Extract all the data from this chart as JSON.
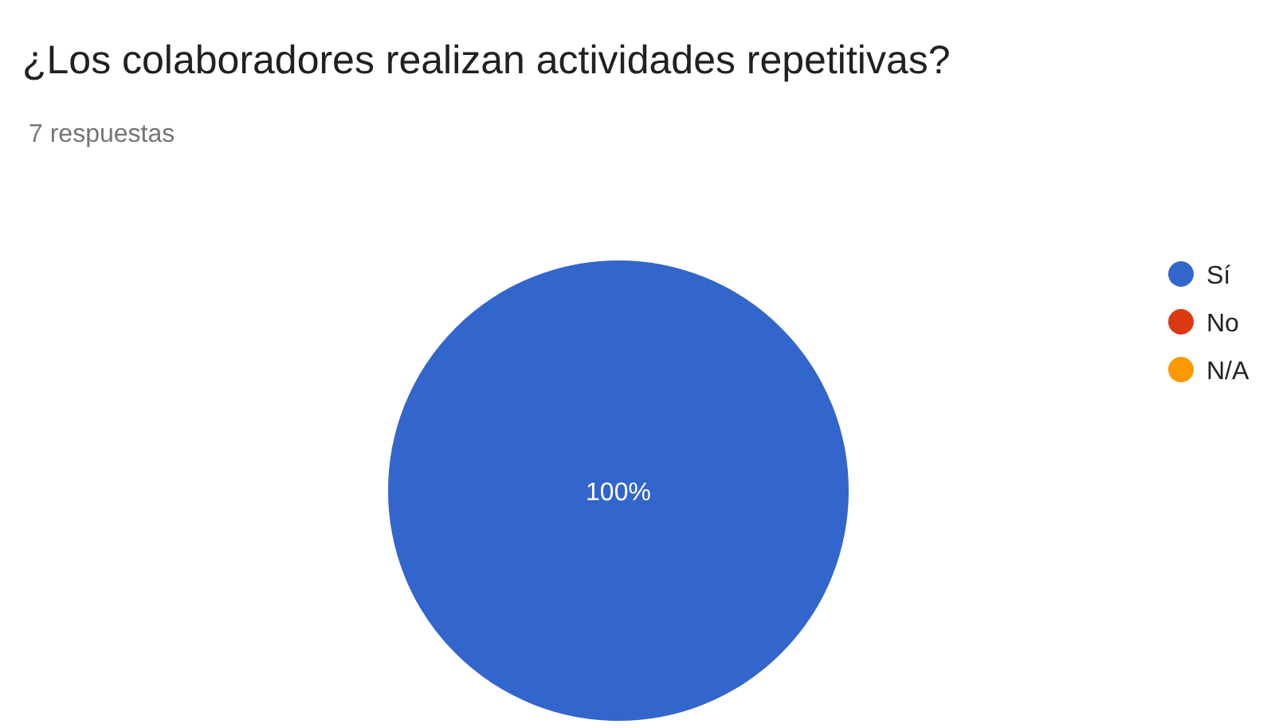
{
  "chart_data": {
    "type": "pie",
    "title": "¿Los colaboradores realizan actividades repetitivas?",
    "subtitle": "7 respuestas",
    "categories": [
      "Sí",
      "No",
      "N/A"
    ],
    "values": [
      100,
      0,
      0
    ],
    "colors": [
      "#3366cc",
      "#dc3912",
      "#ff9900"
    ],
    "value_labels": [
      "100%",
      null,
      null
    ],
    "legend": "top right"
  }
}
